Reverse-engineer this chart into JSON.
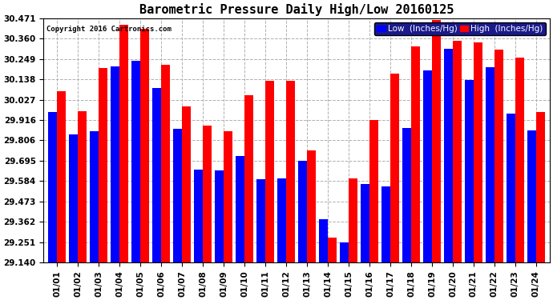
{
  "title": "Barometric Pressure Daily High/Low 20160125",
  "copyright": "Copyright 2016 Cartronics.com",
  "legend_low": "Low  (Inches/Hg)",
  "legend_high": "High  (Inches/Hg)",
  "dates": [
    "01/01",
    "01/02",
    "01/03",
    "01/04",
    "01/05",
    "01/06",
    "01/07",
    "01/08",
    "01/09",
    "01/10",
    "01/11",
    "01/12",
    "01/13",
    "01/14",
    "01/15",
    "01/16",
    "01/17",
    "01/18",
    "01/19",
    "01/20",
    "01/21",
    "01/22",
    "01/23",
    "01/24"
  ],
  "low": [
    29.96,
    29.84,
    29.855,
    30.21,
    30.24,
    30.09,
    29.87,
    29.645,
    29.64,
    29.72,
    29.595,
    29.6,
    29.695,
    29.378,
    29.252,
    29.57,
    29.555,
    29.875,
    30.185,
    30.305,
    30.135,
    30.205,
    29.95,
    29.86
  ],
  "high": [
    30.075,
    29.965,
    30.2,
    30.435,
    30.415,
    30.215,
    29.99,
    29.885,
    29.855,
    30.05,
    30.13,
    30.13,
    29.75,
    29.278,
    29.6,
    29.918,
    30.17,
    30.318,
    30.462,
    30.348,
    30.34,
    30.302,
    30.258,
    29.958
  ],
  "ylim_min": 29.14,
  "ylim_max": 30.471,
  "yticks": [
    29.14,
    29.251,
    29.362,
    29.473,
    29.584,
    29.695,
    29.806,
    29.916,
    30.027,
    30.138,
    30.249,
    30.36,
    30.471
  ],
  "bar_color_low": "#0000ff",
  "bar_color_high": "#ff0000",
  "bg_color": "#ffffff",
  "grid_color": "#b0b0b0",
  "title_fontsize": 11,
  "tick_fontsize": 7.5,
  "legend_fontsize": 7.5
}
